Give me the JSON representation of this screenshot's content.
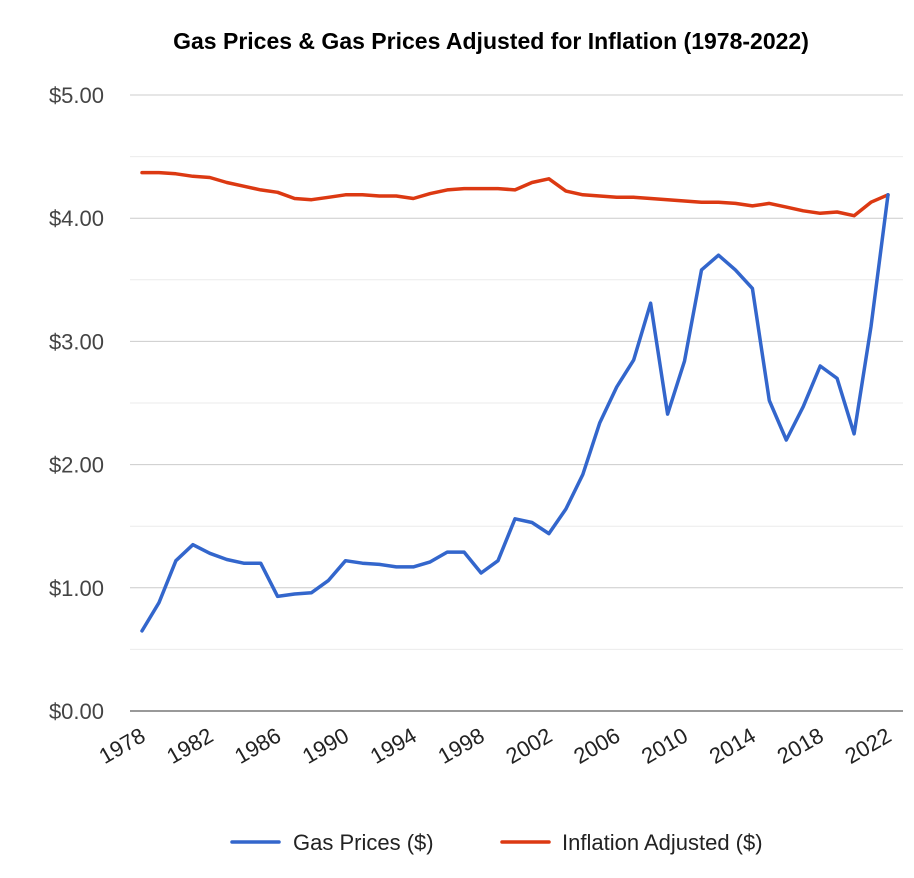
{
  "chart_data": {
    "type": "line",
    "title": "Gas Prices & Gas Prices Adjusted for Inflation (1978-2022)",
    "xlabel": "",
    "ylabel": "",
    "x": [
      1978,
      1979,
      1980,
      1981,
      1982,
      1983,
      1984,
      1985,
      1986,
      1987,
      1988,
      1989,
      1990,
      1991,
      1992,
      1993,
      1994,
      1995,
      1996,
      1997,
      1998,
      1999,
      2000,
      2001,
      2002,
      2003,
      2004,
      2005,
      2006,
      2007,
      2008,
      2009,
      2010,
      2011,
      2012,
      2013,
      2014,
      2015,
      2016,
      2017,
      2018,
      2019,
      2020,
      2021,
      2022
    ],
    "xticks": [
      "1978",
      "1982",
      "1986",
      "1990",
      "1994",
      "1998",
      "2002",
      "2006",
      "2010",
      "2014",
      "2018",
      "2022"
    ],
    "ylim": [
      0,
      5
    ],
    "yticks": [
      "$0.00",
      "$1.00",
      "$2.00",
      "$3.00",
      "$4.00",
      "$5.00"
    ],
    "y_minor_gridlines": true,
    "legend_position": "bottom",
    "series": [
      {
        "name": "Gas Prices ($)",
        "color": "#3366cc",
        "values": [
          0.65,
          0.88,
          1.22,
          1.35,
          1.28,
          1.23,
          1.2,
          1.2,
          0.93,
          0.95,
          0.96,
          1.06,
          1.22,
          1.2,
          1.19,
          1.17,
          1.17,
          1.21,
          1.29,
          1.29,
          1.12,
          1.22,
          1.56,
          1.53,
          1.44,
          1.64,
          1.92,
          2.34,
          2.63,
          2.85,
          3.31,
          2.41,
          2.84,
          3.58,
          3.7,
          3.58,
          3.43,
          2.52,
          2.2,
          2.47,
          2.8,
          2.7,
          2.25,
          3.12,
          4.19
        ]
      },
      {
        "name": "Inflation Adjusted ($)",
        "color": "#dc3912",
        "values": [
          4.37,
          4.37,
          4.36,
          4.34,
          4.33,
          4.29,
          4.26,
          4.23,
          4.21,
          4.16,
          4.15,
          4.17,
          4.19,
          4.19,
          4.18,
          4.18,
          4.16,
          4.2,
          4.23,
          4.24,
          4.24,
          4.24,
          4.23,
          4.29,
          4.32,
          4.22,
          4.19,
          4.18,
          4.17,
          4.17,
          4.16,
          4.15,
          4.14,
          4.13,
          4.13,
          4.12,
          4.1,
          4.12,
          4.09,
          4.06,
          4.04,
          4.05,
          4.02,
          4.13,
          4.19
        ]
      }
    ]
  }
}
